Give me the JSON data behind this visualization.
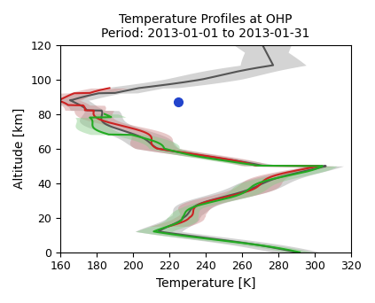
{
  "title_line1": "Temperature Profiles at OHP",
  "title_line2": "Period: 2013-01-01 to 2013-01-31",
  "xlabel": "Temperature [K]",
  "ylabel": "Altitude [km]",
  "xlim": [
    160,
    320
  ],
  "ylim": [
    0,
    120
  ],
  "xticks": [
    160,
    180,
    200,
    220,
    240,
    260,
    280,
    300,
    320
  ],
  "yticks": [
    0,
    20,
    40,
    60,
    80,
    100,
    120
  ],
  "background_color": "#ffffff",
  "gray_color": "#555555",
  "gray_fill_color": "#aaaaaa",
  "red_color": "#cc2222",
  "red_fill_color": "#cc8888",
  "green_color": "#22aa22",
  "green_fill_color": "#88cc88",
  "blue_dot_color": "#2244cc",
  "blue_dot_x": 225,
  "blue_dot_y": 87
}
